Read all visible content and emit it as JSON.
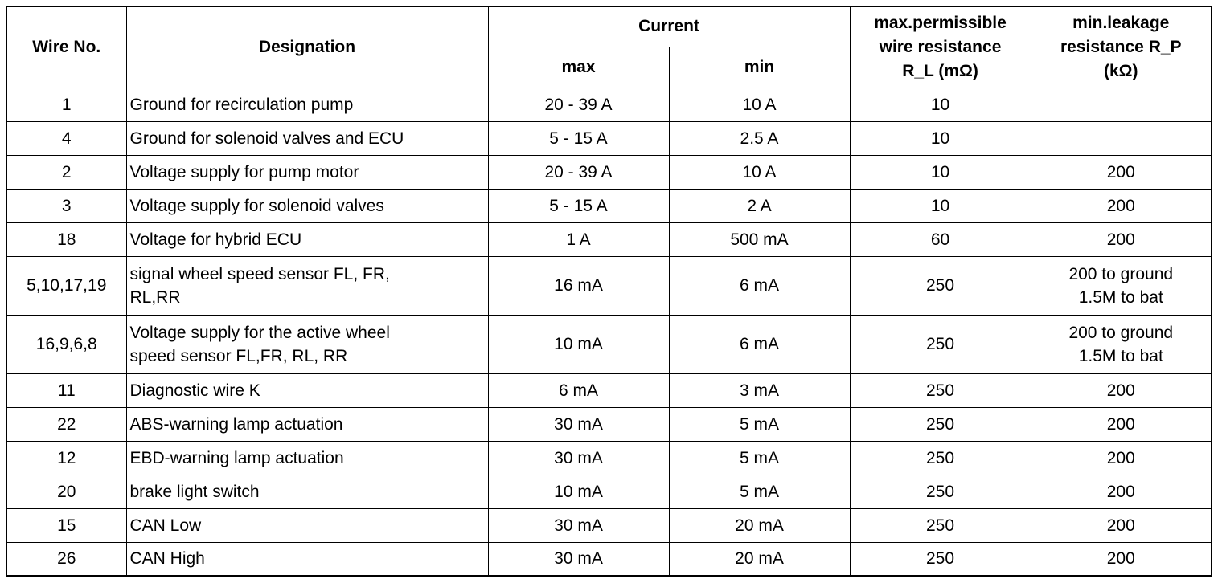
{
  "table": {
    "headers": {
      "wire_no": "Wire No.",
      "designation": "Designation",
      "current": "Current",
      "max": "max",
      "min": "min",
      "wire_resistance": [
        "max.permissible",
        "wire resistance",
        "R_L (mΩ)"
      ],
      "leakage_resistance": [
        "min.leakage",
        "resistance R_P",
        "(kΩ)"
      ]
    },
    "rows": [
      {
        "wire": "1",
        "designation": [
          "Ground for recirculation pump"
        ],
        "max": "20 - 39 A",
        "min": "10 A",
        "rl": "10",
        "rp": [
          ""
        ]
      },
      {
        "wire": "4",
        "designation": [
          "Ground for solenoid valves and ECU"
        ],
        "max": "5 - 15 A",
        "min": "2.5 A",
        "rl": "10",
        "rp": [
          ""
        ]
      },
      {
        "wire": "2",
        "designation": [
          "Voltage supply for pump motor"
        ],
        "max": "20 - 39 A",
        "min": "10 A",
        "rl": "10",
        "rp": [
          "200"
        ]
      },
      {
        "wire": "3",
        "designation": [
          "Voltage supply for solenoid valves"
        ],
        "max": "5 - 15 A",
        "min": "2 A",
        "rl": "10",
        "rp": [
          "200"
        ]
      },
      {
        "wire": "18",
        "designation": [
          "Voltage for hybrid ECU"
        ],
        "max": "1 A",
        "min": "500 mA",
        "rl": "60",
        "rp": [
          "200"
        ]
      },
      {
        "wire": "5,10,17,19",
        "designation": [
          "signal wheel speed sensor FL, FR,",
          "RL,RR"
        ],
        "max": "16 mA",
        "min": "6 mA",
        "rl": "250",
        "rp": [
          "200 to ground",
          "1.5M to bat"
        ]
      },
      {
        "wire": "16,9,6,8",
        "designation": [
          "Voltage supply for the active wheel",
          "speed sensor FL,FR, RL, RR"
        ],
        "max": "10 mA",
        "min": "6 mA",
        "rl": "250",
        "rp": [
          "200 to ground",
          "1.5M to bat"
        ]
      },
      {
        "wire": "11",
        "designation": [
          "Diagnostic wire K"
        ],
        "max": "6 mA",
        "min": "3 mA",
        "rl": "250",
        "rp": [
          "200"
        ]
      },
      {
        "wire": "22",
        "designation": [
          "ABS-warning lamp actuation"
        ],
        "max": "30 mA",
        "min": "5 mA",
        "rl": "250",
        "rp": [
          "200"
        ]
      },
      {
        "wire": "12",
        "designation": [
          "EBD-warning lamp actuation"
        ],
        "max": "30 mA",
        "min": "5 mA",
        "rl": "250",
        "rp": [
          "200"
        ]
      },
      {
        "wire": "20",
        "designation": [
          "brake light switch"
        ],
        "max": "10 mA",
        "min": "5 mA",
        "rl": "250",
        "rp": [
          "200"
        ]
      },
      {
        "wire": "15",
        "designation": [
          "CAN Low"
        ],
        "max": "30 mA",
        "min": "20 mA",
        "rl": "250",
        "rp": [
          "200"
        ]
      },
      {
        "wire": "26",
        "designation": [
          "CAN High"
        ],
        "max": "30 mA",
        "min": "20 mA",
        "rl": "250",
        "rp": [
          "200"
        ]
      }
    ]
  }
}
